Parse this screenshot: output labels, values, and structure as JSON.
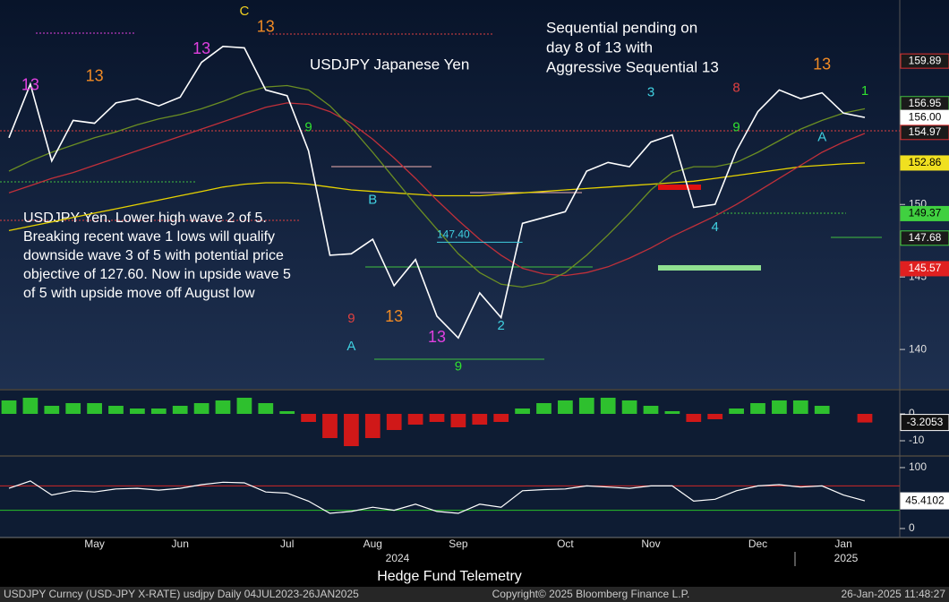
{
  "chart_data": [
    {
      "type": "line",
      "title": "USDJPY Japanese Yen",
      "annotation": [
        "Sequential pending on",
        "day 8 of 13 with",
        "Aggressive Sequential 13"
      ],
      "note": [
        "USDJPY Yen.  Lower high wave 2 of 5.",
        "Breaking recent wave 1 lows will qualify",
        "downside wave 3 of 5 with potential price",
        "objective of 127.60.  Now in upside wave 5",
        "of 5 with upside move off August low"
      ],
      "categories": [
        null,
        null,
        null,
        null,
        "May",
        null,
        null,
        null,
        "Jun",
        null,
        null,
        null,
        null,
        "Jul",
        null,
        null,
        null,
        "Aug",
        null,
        null,
        null,
        "Sep",
        null,
        null,
        null,
        null,
        "Oct",
        null,
        null,
        null,
        "Nov",
        null,
        null,
        null,
        null,
        "Dec",
        null,
        null,
        null,
        "Jan",
        null
      ],
      "x_group_labels": [
        "2024",
        "2025"
      ],
      "series": [
        {
          "color": "#ffffff",
          "values": [
            154.6,
            158.3,
            153.0,
            155.8,
            155.6,
            157.0,
            157.3,
            156.8,
            157.4,
            159.8,
            160.9,
            160.8,
            157.9,
            157.5,
            153.7,
            146.5,
            146.6,
            147.6,
            144.4,
            146.2,
            142.3,
            140.8,
            143.9,
            142.2,
            148.7,
            149.1,
            149.5,
            152.3,
            152.9,
            152.6,
            154.3,
            154.8,
            149.8,
            150.0,
            153.7,
            156.4,
            157.9,
            157.3,
            157.7,
            156.3,
            156
          ]
        },
        {
          "color": "#6b8e23",
          "values": [
            152.3,
            153.0,
            153.6,
            154.1,
            154.6,
            155.0,
            155.5,
            155.9,
            156.2,
            156.6,
            157.1,
            157.7,
            158.1,
            158.2,
            157.9,
            156.8,
            155.3,
            153.6,
            151.8,
            150.0,
            148.3,
            146.6,
            145.3,
            144.5,
            144.3,
            144.6,
            145.3,
            146.5,
            147.9,
            149.4,
            151.0,
            152.2,
            152.6,
            152.6,
            152.9,
            153.6,
            154.4,
            155.2,
            155.8,
            156.3,
            156.6
          ]
        },
        {
          "color": "#c0303a",
          "values": [
            150.8,
            151.3,
            151.8,
            152.2,
            152.7,
            153.2,
            153.7,
            154.2,
            154.7,
            155.2,
            155.7,
            156.2,
            156.7,
            157.0,
            156.9,
            156.4,
            155.6,
            154.5,
            153.2,
            151.8,
            150.3,
            148.9,
            147.6,
            146.5,
            145.6,
            145.2,
            145.1,
            145.3,
            145.7,
            146.3,
            147.0,
            147.8,
            148.5,
            149.2,
            150.0,
            150.9,
            151.8,
            152.7,
            153.6,
            154.3,
            154.9
          ]
        },
        {
          "color": "#e6d200",
          "values": [
            148.2,
            148.5,
            148.8,
            149.1,
            149.4,
            149.7,
            150.0,
            150.3,
            150.6,
            150.9,
            151.2,
            151.4,
            151.5,
            151.5,
            151.4,
            151.2,
            151.0,
            150.9,
            150.8,
            150.7,
            150.6,
            150.6,
            150.6,
            150.7,
            150.8,
            150.9,
            151.0,
            151.1,
            151.2,
            151.3,
            151.4,
            151.5,
            151.6,
            151.8,
            152.0,
            152.2,
            152.4,
            152.6,
            152.7,
            152.8,
            152.86
          ]
        }
      ],
      "ylim": [
        137.35,
        164.1
      ],
      "yticks": [
        140,
        145,
        150
      ],
      "price_labels": [
        {
          "value": 159.89,
          "color": "#1a1a1a",
          "border": "#e03030",
          "text_color": "#ffffff"
        },
        {
          "value": 156.95,
          "color": "#1a1a1a",
          "border": "#40c040",
          "text_color": "#ffffff"
        },
        {
          "value": 156,
          "label": "156.00",
          "color": "#ffffff",
          "border": "#ffffff",
          "text_color": "#000000"
        },
        {
          "value": 154.97,
          "color": "#1a1a1a",
          "border": "#e03030",
          "text_color": "#ffffff"
        },
        {
          "value": 152.86,
          "color": "#f0e020",
          "border": "#f0e020",
          "text_color": "#000000"
        },
        {
          "value": 149.37,
          "color": "#40d040",
          "border": "#40d040",
          "text_color": "#000000"
        },
        {
          "value": 147.68,
          "color": "#1a1a1a",
          "border": "#40d040",
          "text_color": "#ffffff"
        },
        {
          "value": 145.57,
          "color": "#e02020",
          "border": "#e02020",
          "text_color": "#ffffff"
        }
      ],
      "level_label": {
        "value": 147.4,
        "label": "147.40"
      },
      "counts": [
        {
          "label": "13",
          "color": "#e040e0",
          "index": 1,
          "value": 158.2
        },
        {
          "label": "13",
          "color": "#f08a24",
          "index": 4,
          "value": 158.8
        },
        {
          "label": "13",
          "color": "#e040e0",
          "index": 9,
          "value": 160.7
        },
        {
          "label": "C",
          "color": "#f0d020",
          "index": 11,
          "value": 163.3
        },
        {
          "label": "13",
          "color": "#f08a24",
          "index": 12,
          "value": 162.2
        },
        {
          "label": "9",
          "color": "#30e030",
          "index": 14,
          "value": 155.3
        },
        {
          "label": "9",
          "color": "#e04040",
          "index": 16,
          "value": 142.1
        },
        {
          "label": "A",
          "color": "#40d0e0",
          "index": 16,
          "value": 140.2
        },
        {
          "label": "B",
          "color": "#40d0e0",
          "index": 17,
          "value": 150.3
        },
        {
          "label": "13",
          "color": "#f08a24",
          "index": 18,
          "value": 142.2
        },
        {
          "label": "13",
          "color": "#e040e0",
          "index": 20,
          "value": 140.8
        },
        {
          "label": "9",
          "color": "#30e030",
          "index": 21,
          "value": 138.8
        },
        {
          "label": "2",
          "color": "#40d0e0",
          "index": 23,
          "value": 141.6
        },
        {
          "label": "3",
          "color": "#40d0e0",
          "index": 30,
          "value": 157.7
        },
        {
          "label": "4",
          "color": "#40d0e0",
          "index": 33,
          "value": 148.4
        },
        {
          "label": "9",
          "color": "#30e030",
          "index": 34,
          "value": 155.3
        },
        {
          "label": "8",
          "color": "#e04040",
          "index": 34,
          "value": 158.0
        },
        {
          "label": "13",
          "color": "#f08a24",
          "index": 38,
          "value": 159.6
        },
        {
          "label": "A",
          "color": "#40d0e0",
          "index": 38,
          "value": 154.6
        },
        {
          "label": "1",
          "color": "#30e030",
          "index": 40,
          "value": 157.8
        }
      ]
    },
    {
      "type": "bar",
      "color": "#2ec02e",
      "negative_color": "#d01818",
      "values": [
        5,
        6,
        3,
        4,
        4,
        3,
        2,
        2,
        3,
        4,
        5,
        6,
        4,
        1,
        -3,
        -9,
        -12,
        -9,
        -6,
        -4,
        -3,
        -5,
        -4,
        -3,
        2,
        4,
        5,
        6,
        6,
        5,
        3,
        1,
        -3,
        -2,
        2,
        4,
        5,
        5,
        3,
        0,
        -3.2053
      ],
      "ylim": [
        -15,
        8.33
      ],
      "yticks": [
        0,
        -10
      ]
    },
    {
      "type": "line",
      "color": "#ffffff",
      "values": [
        66,
        78,
        55,
        62,
        60,
        65,
        66,
        63,
        66,
        72,
        76,
        75,
        60,
        58,
        45,
        25,
        28,
        35,
        30,
        40,
        28,
        25,
        40,
        35,
        62,
        64,
        65,
        70,
        68,
        66,
        70,
        70,
        45,
        48,
        62,
        70,
        72,
        68,
        70,
        55,
        45.4102
      ],
      "ylim": [
        -11.8,
        117.6
      ],
      "yticks": [
        0,
        100
      ],
      "bands": [
        {
          "value": 70,
          "color": "#d02828"
        },
        {
          "value": 30,
          "color": "#28c028"
        }
      ]
    }
  ],
  "watermark": "Hedge Fund Telemetry",
  "footer": {
    "left": "USDJPY Curncy (USD-JPY X-RATE) usdjpy  Daily 04JUL2023-26JAN2025",
    "center": "Copyright© 2025 Bloomberg Finance L.P.",
    "right": "26-Jan-2025 11:48:27"
  }
}
